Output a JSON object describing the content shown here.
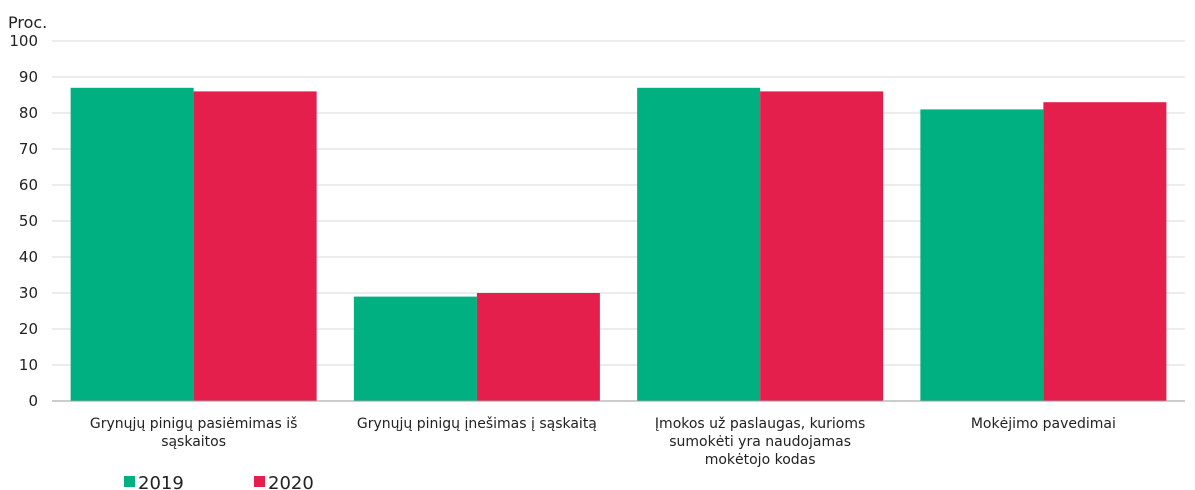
{
  "chart_data": {
    "type": "bar",
    "ylabel": "Proc.",
    "ylim": [
      0,
      100
    ],
    "yticks": [
      0,
      10,
      20,
      30,
      40,
      50,
      60,
      70,
      80,
      90,
      100
    ],
    "grid": true,
    "legend_position": "bottom-left",
    "categories": [
      [
        "Grynųjų pinigų pasiėmimas iš",
        "sąskaitos"
      ],
      [
        "Grynųjų pinigų įnešimas į sąskaitą"
      ],
      [
        "Įmokos už paslaugas, kurioms",
        "sumokėti yra naudojamas",
        "mokėtojo kodas"
      ],
      [
        "Mokėjimo pavedimai"
      ]
    ],
    "series": [
      {
        "name": "2019",
        "color": "#00b081",
        "values": [
          87,
          29,
          87,
          81
        ]
      },
      {
        "name": "2020",
        "color": "#e41f4b",
        "values": [
          86,
          30,
          86,
          83
        ]
      }
    ]
  }
}
